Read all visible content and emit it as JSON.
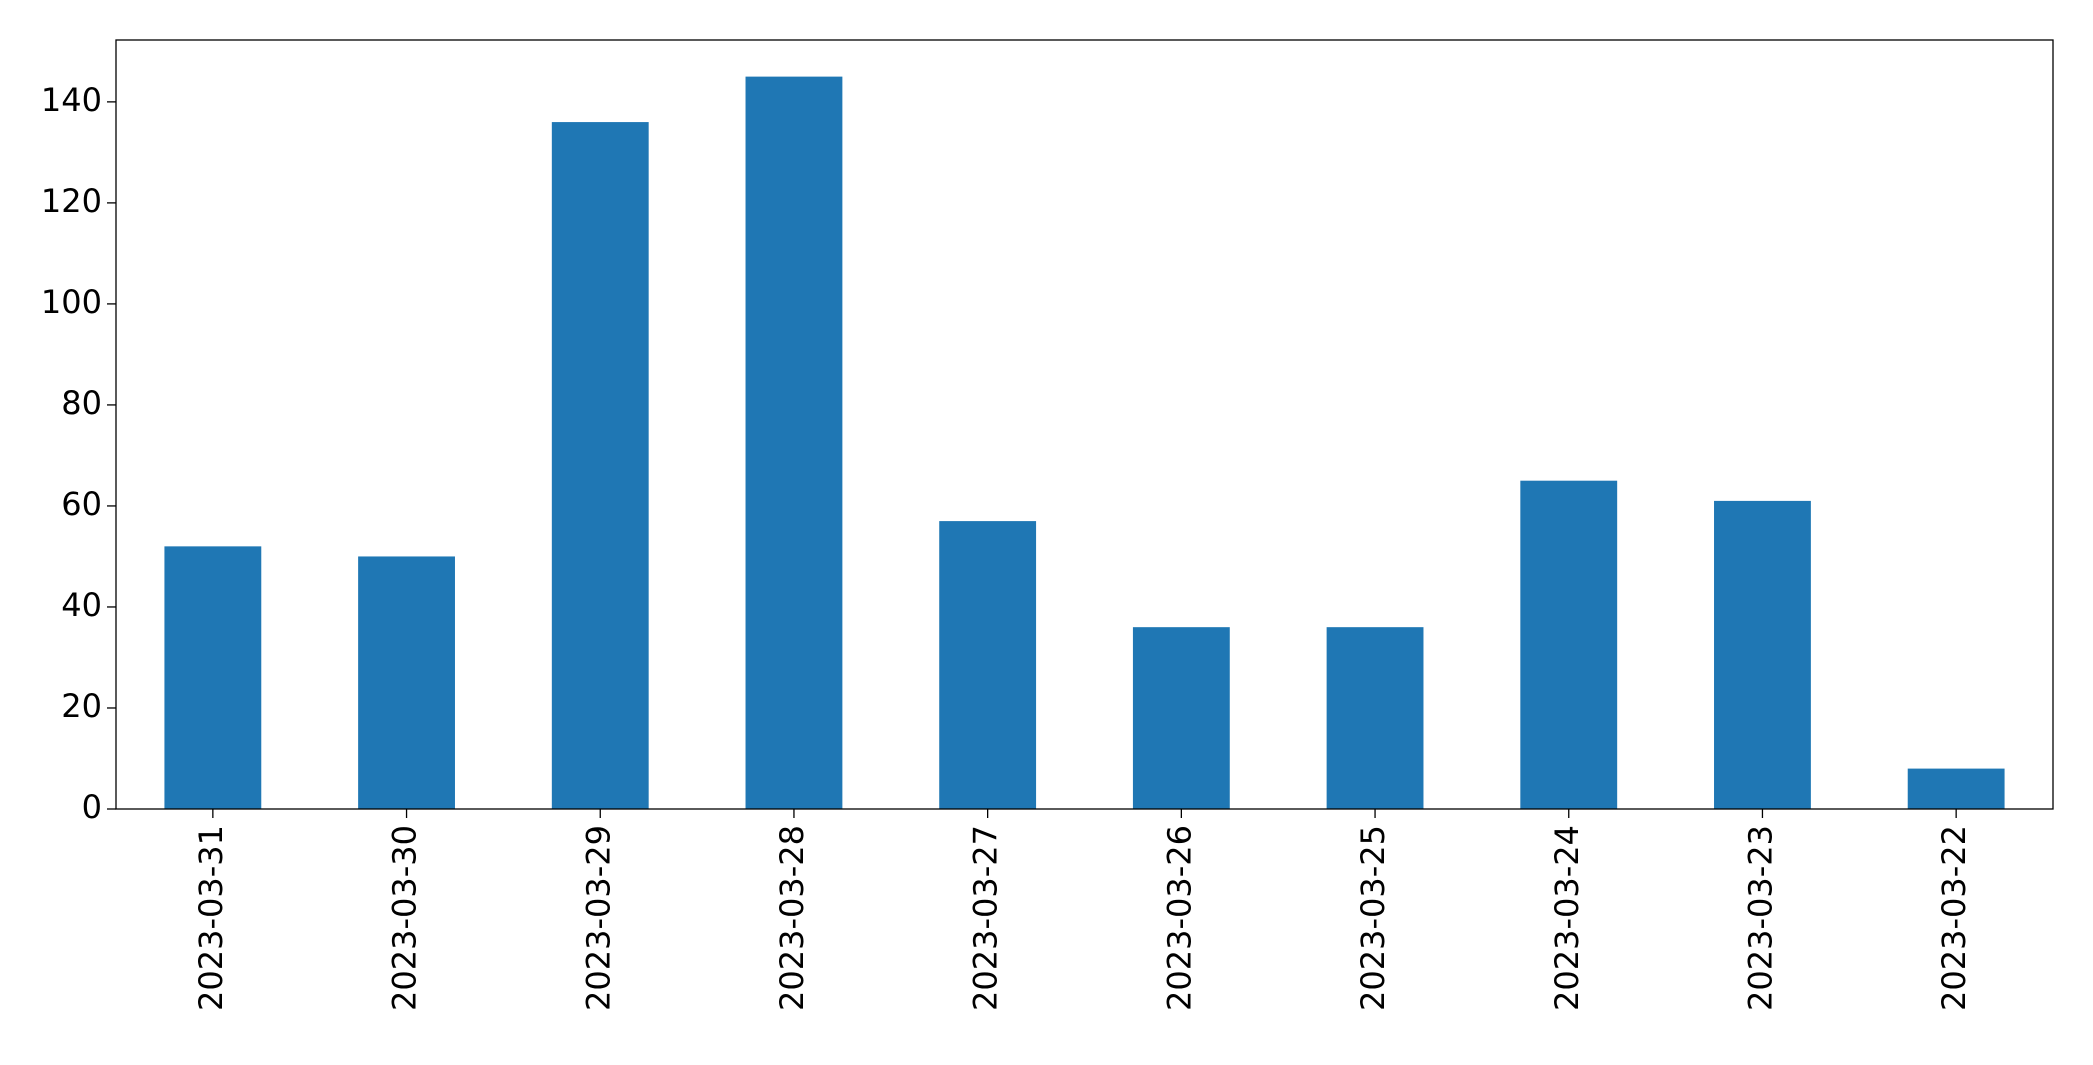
{
  "chart_data": {
    "type": "bar",
    "categories": [
      "2023-03-31",
      "2023-03-30",
      "2023-03-29",
      "2023-03-28",
      "2023-03-27",
      "2023-03-26",
      "2023-03-25",
      "2023-03-24",
      "2023-03-23",
      "2023-03-22"
    ],
    "values": [
      52,
      50,
      136,
      145,
      57,
      36,
      36,
      65,
      61,
      8
    ],
    "color": "#1f77b4",
    "ylim": [
      0,
      152.25
    ],
    "yticks": [
      0,
      20,
      40,
      60,
      80,
      100,
      120,
      140
    ],
    "grid": false
  }
}
